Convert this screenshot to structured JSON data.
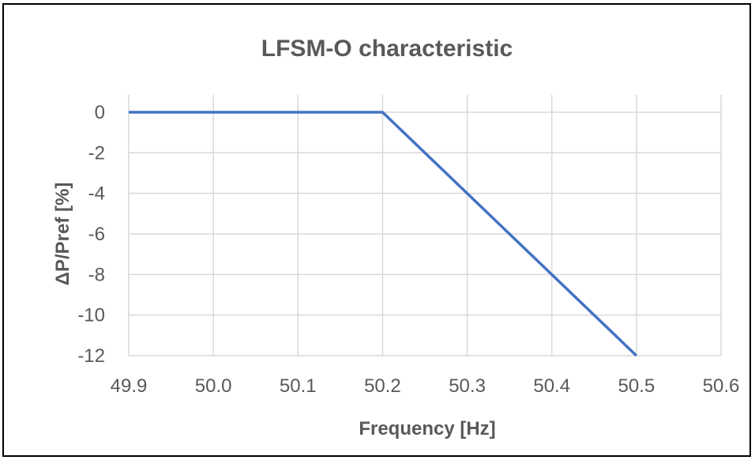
{
  "chart_data": {
    "type": "line",
    "title": "LFSM-O characteristic",
    "xlabel": "Frequency [Hz]",
    "ylabel": "ΔP/Pref [%]",
    "xlim": [
      49.9,
      50.6
    ],
    "ylim": [
      -12,
      0
    ],
    "x_ticks": [
      "49.9",
      "50.0",
      "50.1",
      "50.2",
      "50.3",
      "50.4",
      "50.5",
      "50.6"
    ],
    "y_ticks": [
      "0",
      "-2",
      "-4",
      "-6",
      "-8",
      "-10",
      "-12"
    ],
    "grid": true,
    "legend": "none",
    "series": [
      {
        "x": [
          49.9,
          50.2,
          50.5
        ],
        "y": [
          0,
          0,
          -12
        ],
        "color": "#4472C4"
      }
    ],
    "gridline_color": "#D9D9D9"
  }
}
